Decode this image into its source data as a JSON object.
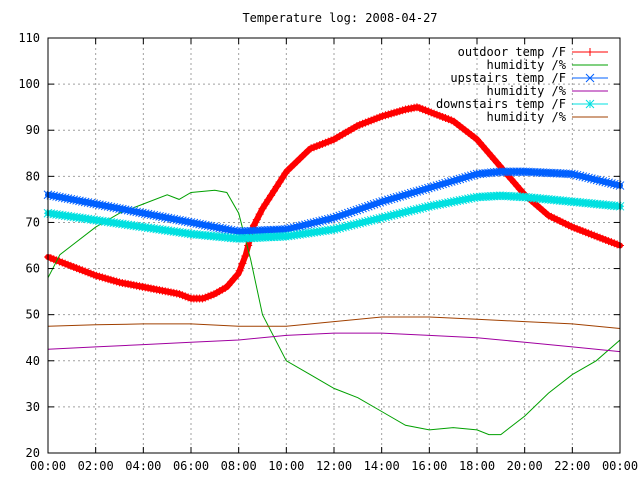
{
  "chart_data": {
    "type": "line",
    "title": "Temperature log: 2008-04-27",
    "xlabel": "",
    "ylabel": "",
    "x_ticks": [
      "00:00",
      "02:00",
      "04:00",
      "06:00",
      "08:00",
      "10:00",
      "12:00",
      "14:00",
      "16:00",
      "18:00",
      "20:00",
      "22:00",
      "00:00"
    ],
    "xlim": [
      0,
      24
    ],
    "ylim": [
      20,
      110
    ],
    "y_ticks": [
      20,
      30,
      40,
      50,
      60,
      70,
      80,
      90,
      100,
      110
    ],
    "grid": true,
    "legend_position": "top-right",
    "series": [
      {
        "name": "outdoor temp /F",
        "color": "#ff0000",
        "marker": "plus",
        "x": [
          0,
          1,
          2,
          3,
          4,
          5,
          5.5,
          6,
          6.5,
          7,
          7.5,
          8,
          8.3,
          8.6,
          9,
          9.5,
          10,
          11,
          12,
          13,
          14,
          15,
          15.5,
          16,
          17,
          18,
          19,
          20,
          21,
          22,
          23,
          24
        ],
        "y": [
          62.5,
          60.5,
          58.5,
          57,
          56,
          55,
          54.5,
          53.5,
          53.5,
          54.5,
          56,
          59,
          63,
          69,
          73,
          77,
          81,
          86,
          88,
          91,
          93,
          94.5,
          95,
          94,
          92,
          88,
          82,
          76,
          71.5,
          69,
          67,
          65
        ]
      },
      {
        "name": "humidity /%",
        "color": "#00a000",
        "marker": "none",
        "x": [
          0,
          0.5,
          1,
          2,
          3,
          4,
          5,
          5.5,
          6,
          7,
          7.5,
          8,
          8.5,
          9,
          10,
          11,
          12,
          13,
          14,
          15,
          16,
          17,
          18,
          18.5,
          19,
          20,
          21,
          22,
          23,
          24
        ],
        "y": [
          58,
          63,
          65,
          69,
          72,
          74,
          76,
          75,
          76.5,
          77,
          76.5,
          72,
          62,
          50,
          40,
          37,
          34,
          32,
          29,
          26,
          25,
          25.5,
          25,
          24,
          24,
          28,
          33,
          37,
          40,
          44.5
        ]
      },
      {
        "name": "upstairs temp /F",
        "color": "#0060ff",
        "marker": "x",
        "x": [
          0,
          2,
          4,
          6,
          8,
          10,
          12,
          14,
          16,
          18,
          19,
          20,
          22,
          24
        ],
        "y": [
          76,
          74,
          72,
          70,
          68,
          68.5,
          71,
          74.5,
          77.5,
          80.5,
          81,
          81,
          80.5,
          78
        ]
      },
      {
        "name": "humidity /%",
        "color": "#a000a0",
        "marker": "none",
        "x": [
          0,
          2,
          4,
          6,
          8,
          10,
          12,
          14,
          16,
          18,
          20,
          22,
          24
        ],
        "y": [
          42.5,
          43,
          43.5,
          44,
          44.5,
          45.5,
          46,
          46,
          45.5,
          45,
          44,
          43,
          42
        ]
      },
      {
        "name": "downstairs temp /F",
        "color": "#00e0e0",
        "marker": "star",
        "x": [
          0,
          2,
          4,
          6,
          8,
          10,
          12,
          14,
          16,
          18,
          19,
          20,
          22,
          24
        ],
        "y": [
          72,
          70.5,
          69,
          67.5,
          66.5,
          67,
          68.5,
          71,
          73.5,
          75.5,
          75.8,
          75.5,
          74.5,
          73.5
        ]
      },
      {
        "name": "humidity /%",
        "color": "#a04000",
        "marker": "none",
        "x": [
          0,
          2,
          4,
          6,
          8,
          10,
          12,
          14,
          16,
          18,
          20,
          22,
          24
        ],
        "y": [
          47.5,
          47.8,
          48,
          48,
          47.5,
          47.5,
          48.5,
          49.5,
          49.5,
          49,
          48.5,
          48,
          47
        ]
      }
    ]
  }
}
